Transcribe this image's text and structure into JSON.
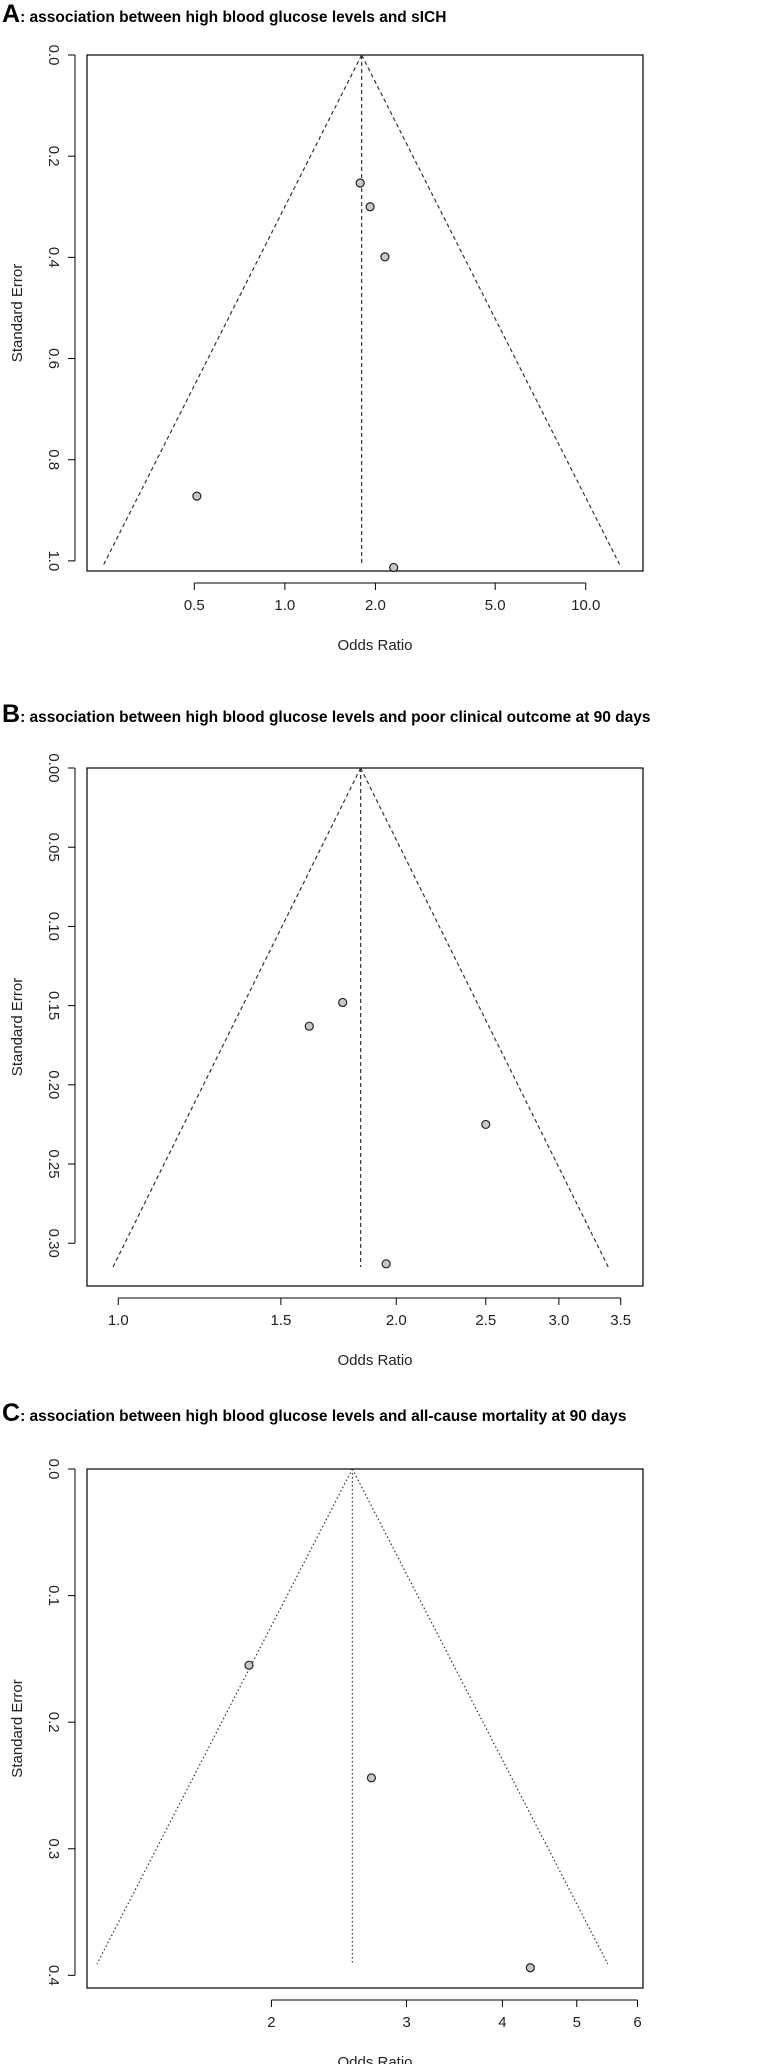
{
  "chart_data": [
    {
      "type": "scatter",
      "subtype": "funnel",
      "panel_label": "A",
      "title": ": association between high blood glucose levels and sICH",
      "xlabel": "Odds Ratio",
      "ylabel": "Standard Error",
      "x_scale": "log",
      "x_tick_labels": [
        "0.5",
        "1.0",
        "2.0",
        "5.0",
        "10.0"
      ],
      "x_ticks": [
        0.5,
        1.0,
        2.0,
        5.0,
        10.0
      ],
      "y_tick_labels": [
        "0.0",
        "0.2",
        "0.4",
        "0.6",
        "0.8",
        "1.0"
      ],
      "y_ticks": [
        0.0,
        0.2,
        0.4,
        0.6,
        0.8,
        1.0
      ],
      "y_reversed": true,
      "xlim": [
        0.22,
        15.5
      ],
      "ylim": [
        0.0,
        1.02
      ],
      "pooled_estimate": 1.8,
      "funnel_se_max": 1.01,
      "line_style": "dashed",
      "points": [
        {
          "x": 1.78,
          "y": 0.253
        },
        {
          "x": 1.92,
          "y": 0.3
        },
        {
          "x": 2.15,
          "y": 0.399
        },
        {
          "x": 0.51,
          "y": 0.872
        },
        {
          "x": 2.3,
          "y": 1.013
        }
      ]
    },
    {
      "type": "scatter",
      "subtype": "funnel",
      "panel_label": "B",
      "title": ": association between high blood glucose levels and poor clinical outcome at 90 days",
      "xlabel": "Odds Ratio",
      "ylabel": "Standard Error",
      "x_scale": "log",
      "x_tick_labels": [
        "1.0",
        "1.5",
        "2.0",
        "2.5",
        "3.0",
        "3.5"
      ],
      "x_ticks": [
        1.0,
        1.5,
        2.0,
        2.5,
        3.0,
        3.5
      ],
      "y_tick_labels": [
        "0.00",
        "0.05",
        "0.10",
        "0.15",
        "0.20",
        "0.25",
        "0.30"
      ],
      "y_ticks": [
        0.0,
        0.05,
        0.1,
        0.15,
        0.2,
        0.25,
        0.3
      ],
      "y_reversed": true,
      "xlim": [
        0.925,
        3.7
      ],
      "ylim": [
        0.0,
        0.327
      ],
      "pooled_estimate": 1.83,
      "funnel_se_max": 0.315,
      "line_style": "dashed",
      "points": [
        {
          "x": 1.75,
          "y": 0.148
        },
        {
          "x": 1.61,
          "y": 0.163
        },
        {
          "x": 2.5,
          "y": 0.225
        },
        {
          "x": 1.95,
          "y": 0.313
        }
      ]
    },
    {
      "type": "scatter",
      "subtype": "funnel",
      "panel_label": "C",
      "title": ": association between high blood glucose levels and all-cause mortality at 90 days",
      "xlabel": "Odds Ratio",
      "ylabel": "Standard Error",
      "x_scale": "log",
      "x_tick_labels": [
        "2",
        "3",
        "4",
        "5",
        "6"
      ],
      "x_ticks": [
        2,
        3,
        4,
        5,
        6
      ],
      "y_tick_labels": [
        "0.0",
        "0.1",
        "0.2",
        "0.3",
        "0.4"
      ],
      "y_ticks": [
        0.0,
        0.1,
        0.2,
        0.3,
        0.4
      ],
      "y_reversed": true,
      "xlim": [
        1.15,
        6.1
      ],
      "ylim": [
        0.0,
        0.41
      ],
      "pooled_estimate": 2.55,
      "funnel_se_max": 0.391,
      "line_style": "dotted",
      "points": [
        {
          "x": 1.87,
          "y": 0.155
        },
        {
          "x": 2.7,
          "y": 0.244
        },
        {
          "x": 4.35,
          "y": 0.394
        }
      ]
    }
  ]
}
